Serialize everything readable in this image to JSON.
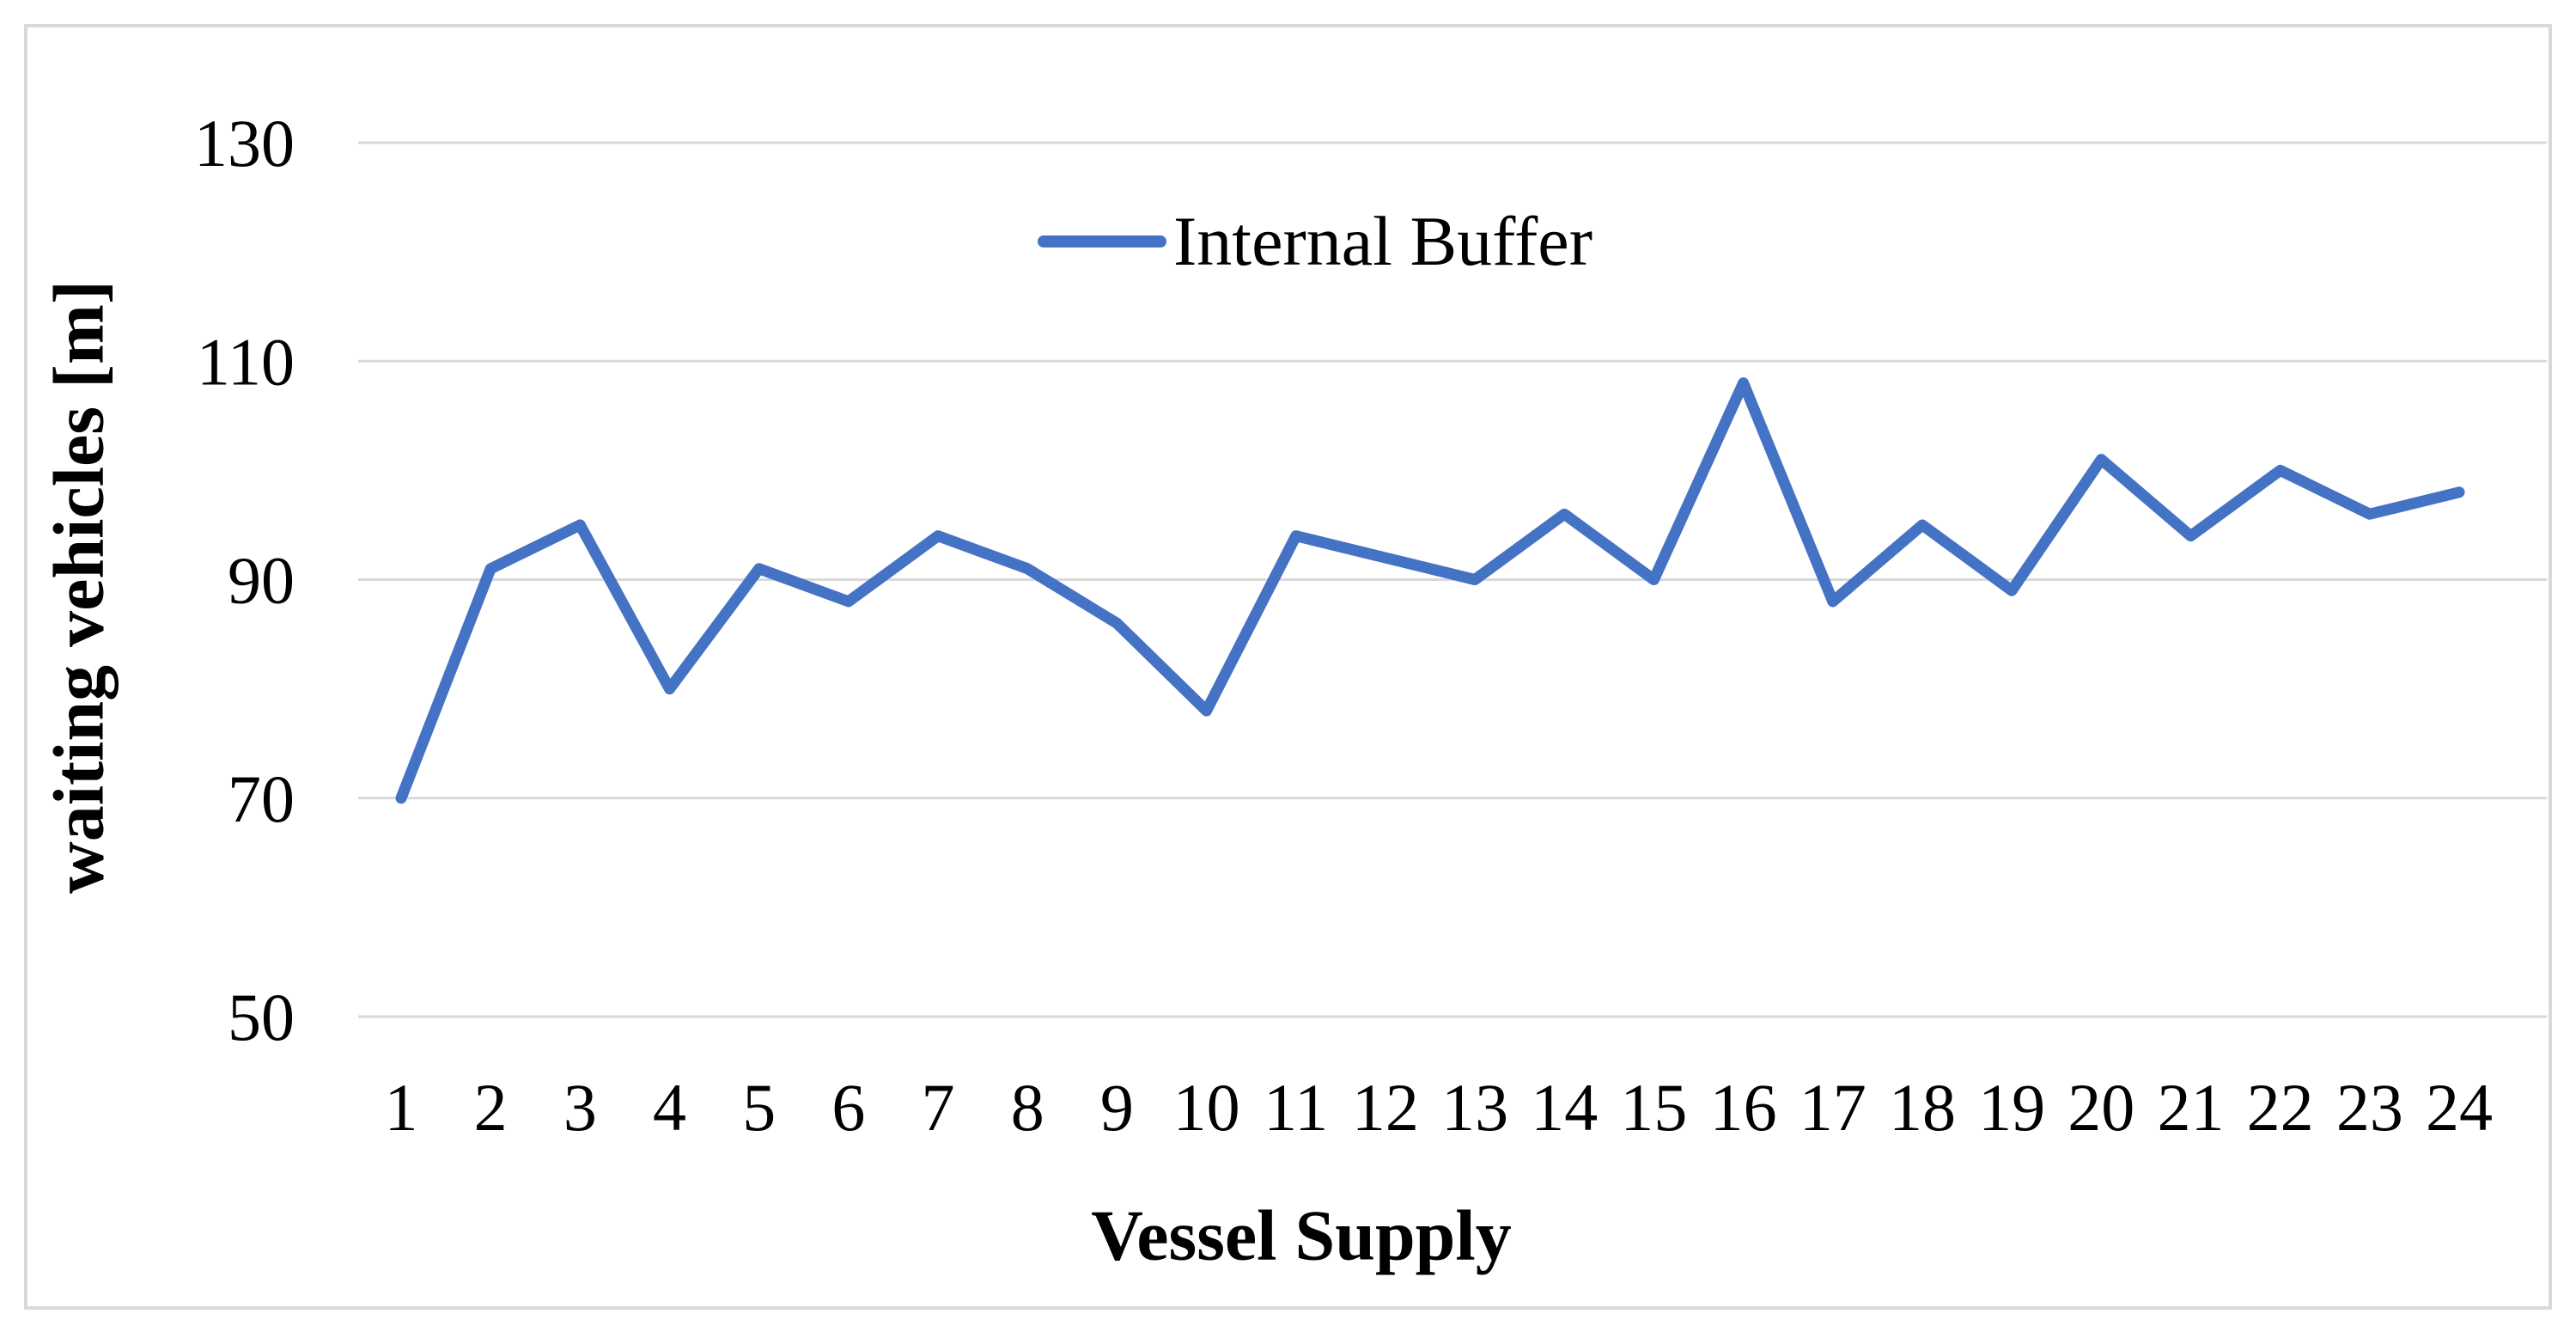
{
  "figure": {
    "background": "#FFFFFF",
    "border_color": "#D9D9D9",
    "gridline_color": "#D9D9D9",
    "text_color": "#000000"
  },
  "chart_data": {
    "type": "line",
    "title": "",
    "xlabel": "Vessel Supply",
    "ylabel": "waiting vehicles [m]",
    "categories": [
      "1",
      "2",
      "3",
      "4",
      "5",
      "6",
      "7",
      "8",
      "9",
      "10",
      "11",
      "12",
      "13",
      "14",
      "15",
      "16",
      "17",
      "18",
      "19",
      "20",
      "21",
      "22",
      "23",
      "24"
    ],
    "series": [
      {
        "name": "Internal Buffer",
        "color": "#4472C4",
        "values": [
          70,
          91,
          95,
          80,
          91,
          88,
          94,
          91,
          86,
          78,
          94,
          92,
          90,
          96,
          90,
          108,
          88,
          95,
          89,
          101,
          94,
          100,
          96,
          98
        ]
      }
    ],
    "ylim": [
      50,
      130
    ],
    "y_ticks": [
      130,
      110,
      90,
      70,
      50
    ],
    "grid": "horizontal",
    "legend_position": "top-center"
  }
}
